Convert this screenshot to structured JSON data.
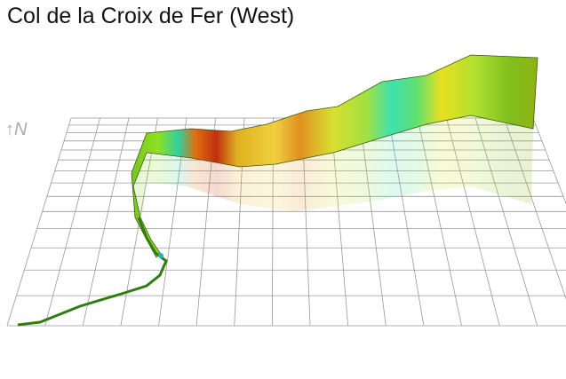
{
  "header": {
    "title": "Col de la Croix de Fer (West)"
  },
  "compass": {
    "label": "↑N"
  }
}
